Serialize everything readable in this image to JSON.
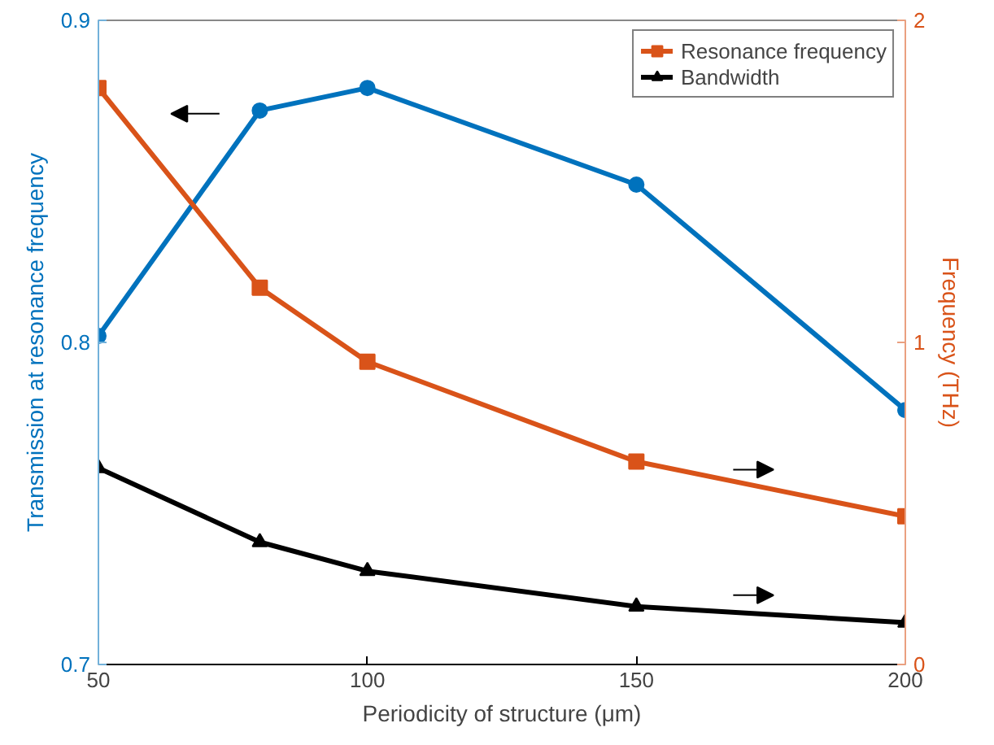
{
  "chart_data": {
    "type": "line",
    "xlabel": "Periodicity of structure (μm)",
    "ylabel": "Transmission at resonance frequency",
    "y2label": "Frequency (THz)",
    "x": [
      50,
      80,
      100,
      150,
      200
    ],
    "xlim": [
      50,
      200
    ],
    "xticks": [
      50,
      100,
      150,
      200
    ],
    "ylim": [
      0.7,
      0.9
    ],
    "yticks": [
      0.7,
      0.8,
      0.9
    ],
    "y2lim": [
      0,
      2
    ],
    "y2ticks": [
      0,
      1,
      2
    ],
    "series": [
      {
        "color": "#0072bd",
        "marker": "circle",
        "values": [
          0.802,
          0.872,
          0.879,
          0.849,
          0.779
        ]
      },
      {
        "name": "Resonance frequency",
        "color": "#d95319",
        "marker": "square",
        "axis": "y2",
        "values": [
          1.79,
          1.17,
          0.94,
          0.63,
          0.46
        ]
      },
      {
        "name": "Bandwidth",
        "color": "#000000",
        "marker": "triangle",
        "axis": "y2",
        "values": [
          0.61,
          0.38,
          0.29,
          0.18,
          0.13
        ]
      }
    ],
    "legend": "top right",
    "grid": false
  }
}
